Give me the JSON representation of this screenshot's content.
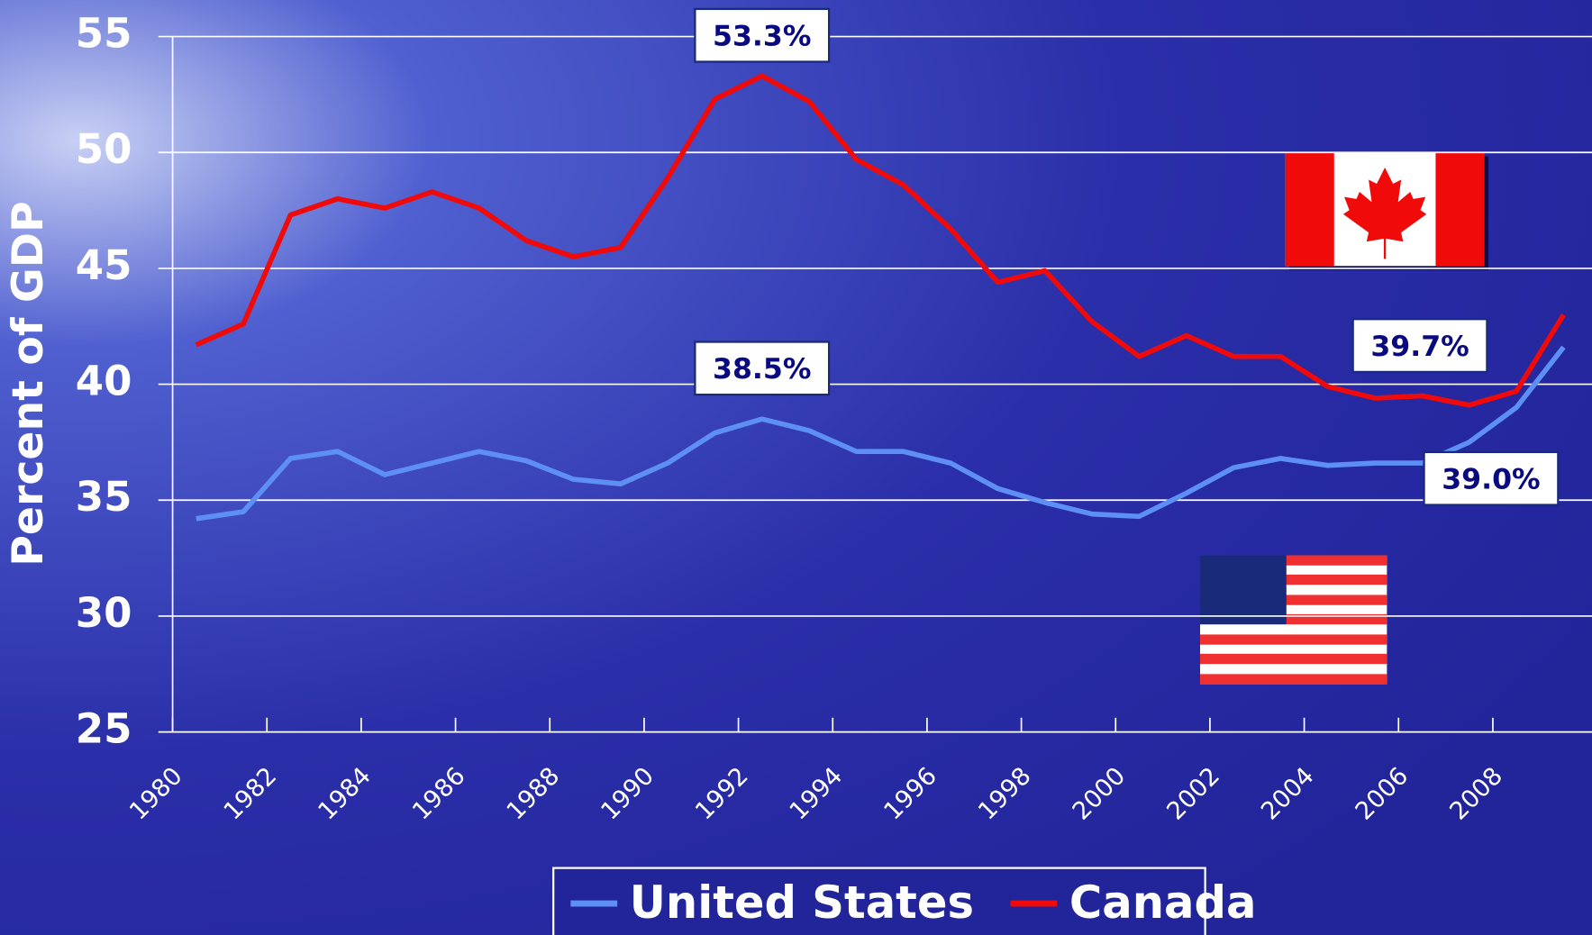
{
  "chart_data": {
    "type": "line",
    "y_label": "Percent of GDP",
    "x": [
      1980.5,
      1981.5,
      1982.5,
      1983.5,
      1984.5,
      1985.5,
      1986.5,
      1987.5,
      1988.5,
      1989.5,
      1990.5,
      1991.5,
      1992.5,
      1993.5,
      1994.5,
      1995.5,
      1996.5,
      1997.5,
      1998.5,
      1999.5,
      2000.5,
      2001.5,
      2002.5,
      2003.5,
      2004.5,
      2005.5,
      2006.5,
      2007.5,
      2008.5,
      2009.5
    ],
    "series": [
      {
        "name": "United States",
        "color": "#5d8ff5",
        "values": [
          34.2,
          34.5,
          36.8,
          37.1,
          36.1,
          36.6,
          37.1,
          36.7,
          35.9,
          35.7,
          36.6,
          37.9,
          38.5,
          38.0,
          37.1,
          37.1,
          36.6,
          35.5,
          34.9,
          34.4,
          34.3,
          35.3,
          36.4,
          36.8,
          36.5,
          36.6,
          36.6,
          37.5,
          39.0,
          41.6
        ]
      },
      {
        "name": "Canada",
        "color": "#f00a0a",
        "values": [
          41.7,
          42.6,
          47.3,
          48.0,
          47.6,
          48.3,
          47.6,
          46.2,
          45.5,
          45.9,
          48.9,
          52.3,
          53.3,
          52.2,
          49.7,
          48.6,
          46.7,
          44.4,
          44.9,
          42.7,
          41.2,
          42.1,
          41.2,
          41.2,
          39.9,
          39.4,
          39.5,
          39.1,
          39.7,
          43.0
        ]
      }
    ],
    "annotations": [
      {
        "text": "53.3%",
        "x": 1992.5,
        "y": 53.3
      },
      {
        "text": "38.5%",
        "x": 1992.5,
        "y": 38.5
      },
      {
        "text": "39.7%",
        "x": 2008.5,
        "y": 39.7
      },
      {
        "text": "39.0%",
        "x": 2008.5,
        "y": 39.0
      }
    ],
    "xlim": [
      1980,
      2009.5
    ],
    "xticks": [
      1980,
      1982,
      1984,
      1986,
      1988,
      1990,
      1992,
      1994,
      1996,
      1998,
      2000,
      2002,
      2004,
      2006,
      2008
    ],
    "ylim": [
      25,
      55
    ],
    "yticks": [
      25,
      30,
      35,
      40,
      45,
      50,
      55
    ],
    "grid": true,
    "legend": "bottom"
  }
}
